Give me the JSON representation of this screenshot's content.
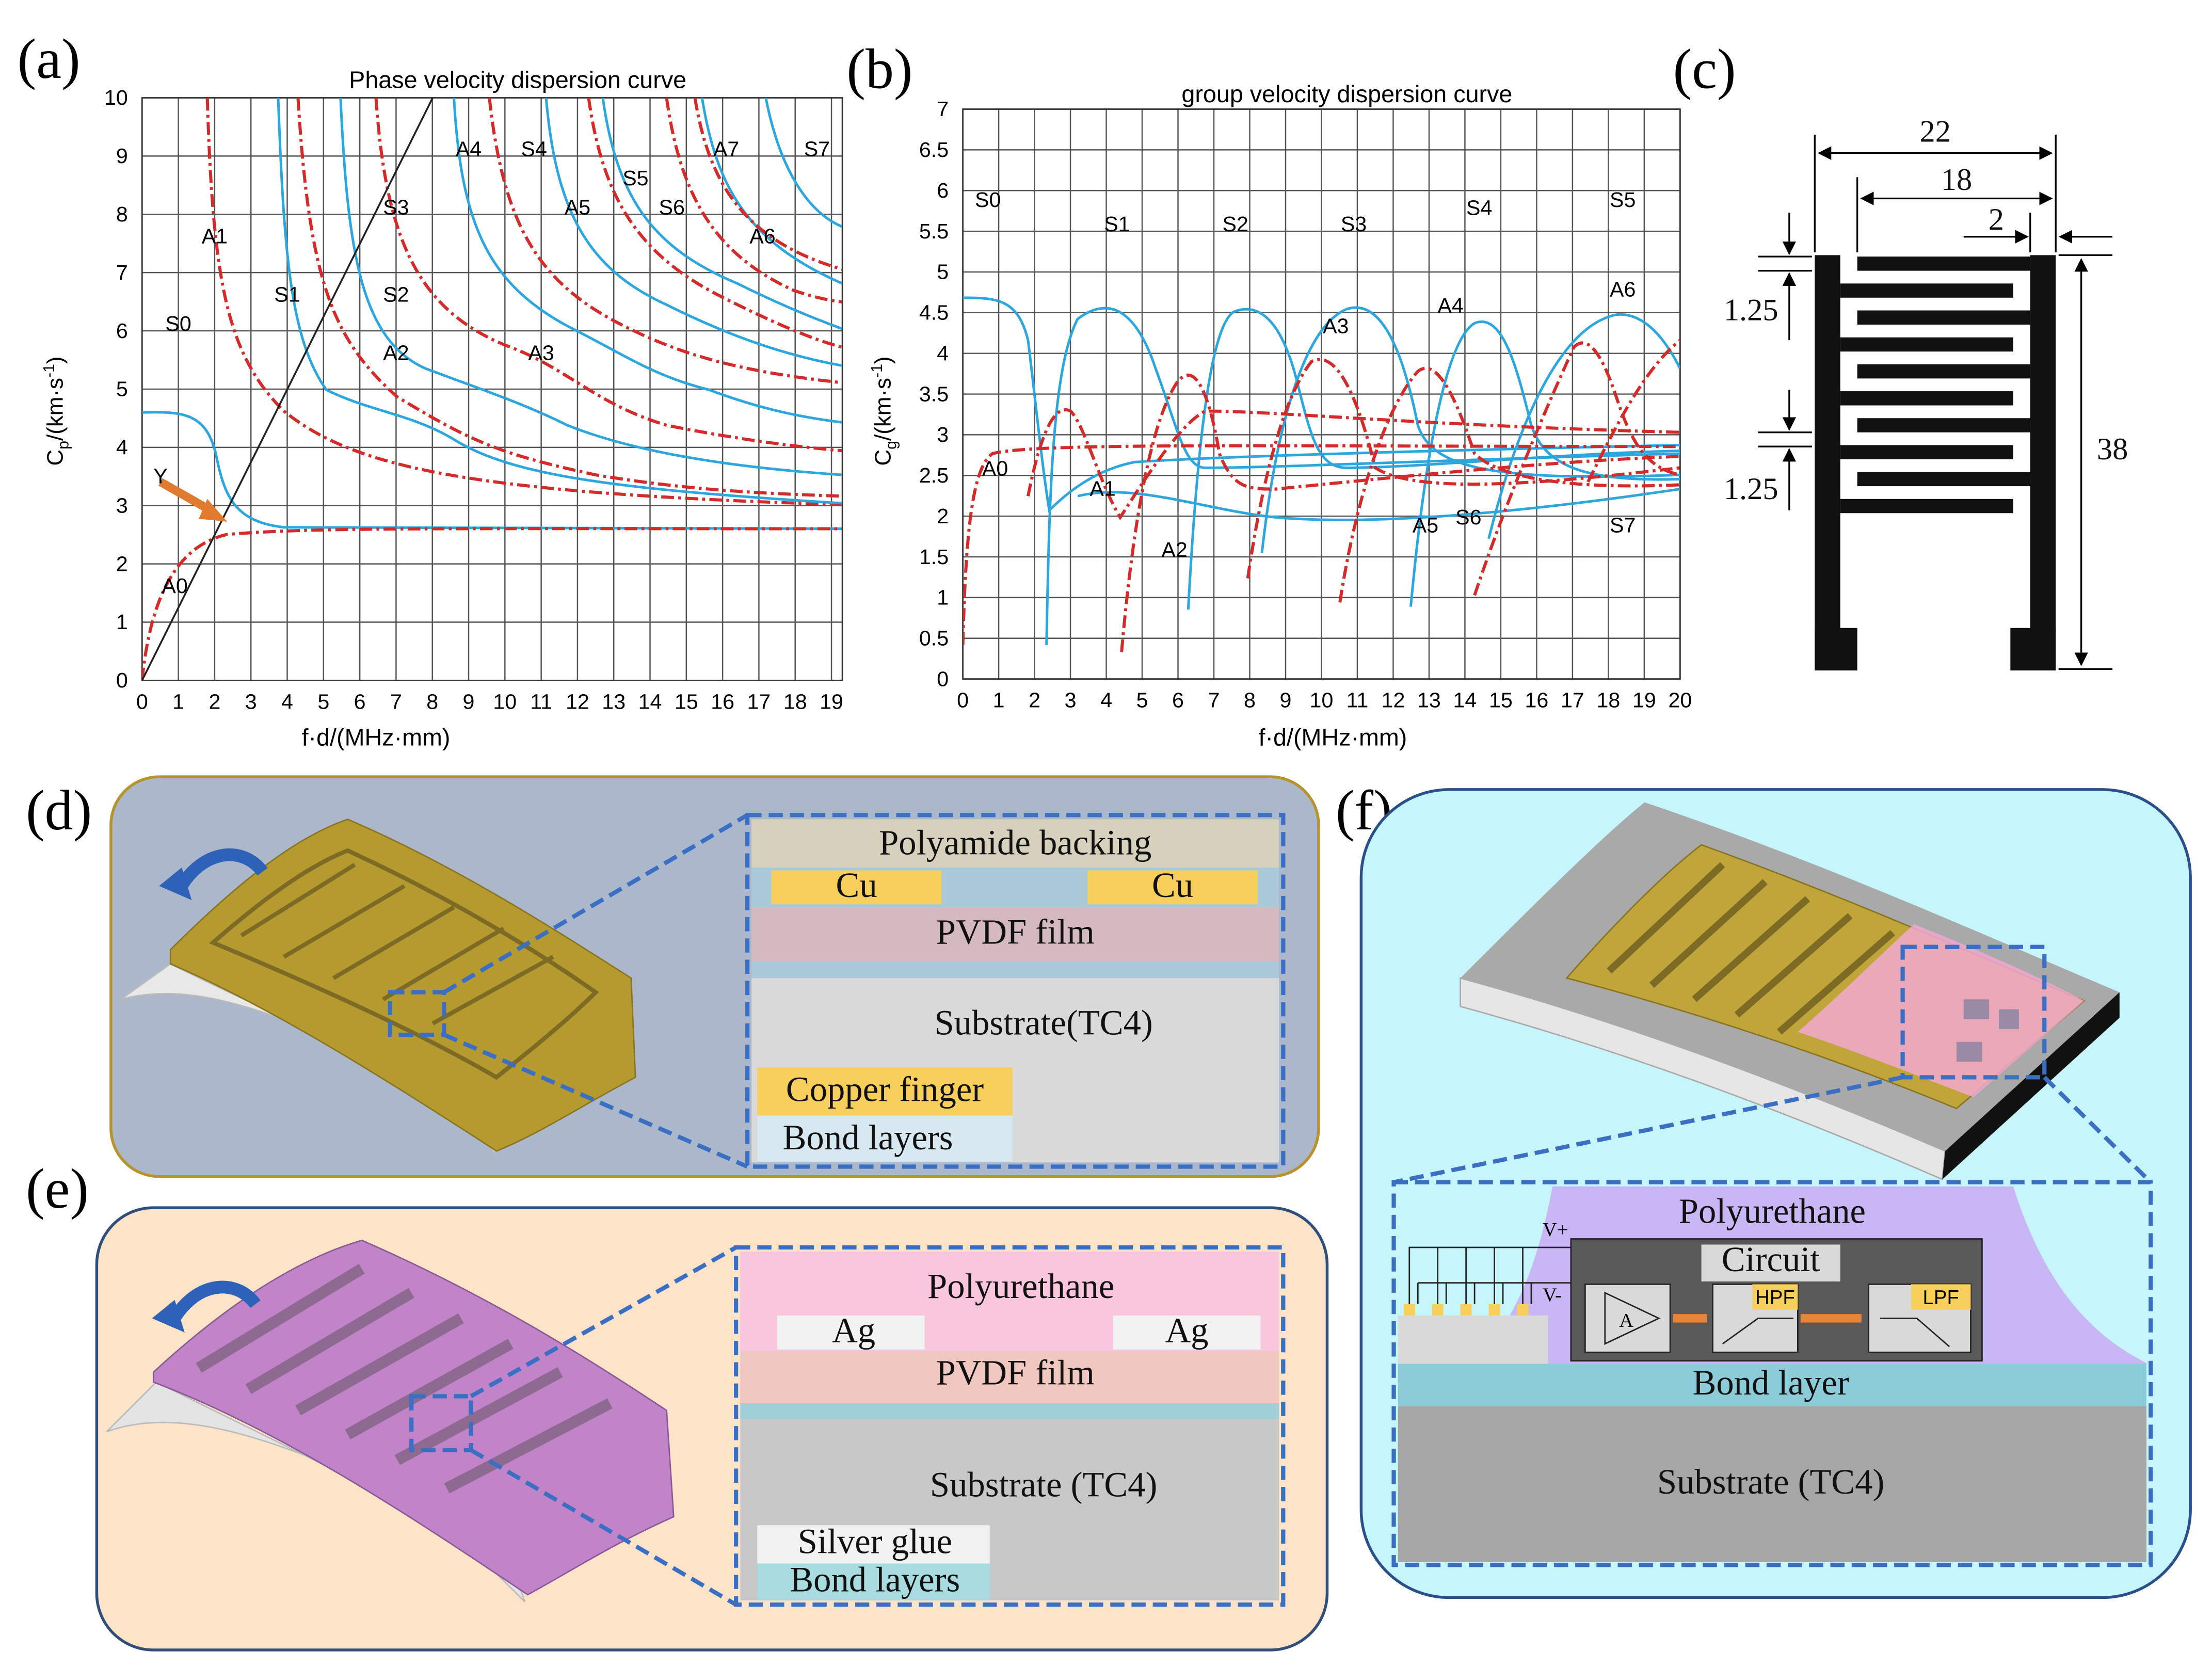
{
  "chart_a": {
    "type": "line",
    "label": "(a)",
    "title": "Phase velocity dispersion curve",
    "x_label": "f·d/(MHz·mm)",
    "y_label": {
      "symbol": "C",
      "subscript": "p",
      "unit": "/(km·s",
      "superscript": "-1",
      "close": ")"
    },
    "xlim": [
      0,
      19.3
    ],
    "xticks": [
      0,
      1,
      2,
      3,
      4,
      5,
      6,
      7,
      8,
      9,
      10,
      11,
      12,
      13,
      14,
      15,
      16,
      17,
      18,
      19
    ],
    "ylim": [
      0,
      10
    ],
    "yticks": [
      0,
      1,
      2,
      3,
      4,
      5,
      6,
      7,
      8,
      9,
      10
    ],
    "grid": true,
    "pointer_label": "Y",
    "annotations": [
      {
        "text": "S0",
        "x": 1.0,
        "y": 6.0
      },
      {
        "text": "A1",
        "x": 2.0,
        "y": 7.5
      },
      {
        "text": "S1",
        "x": 4.0,
        "y": 6.5
      },
      {
        "text": "S3",
        "x": 7.0,
        "y": 8.0
      },
      {
        "text": "S2",
        "x": 7.0,
        "y": 6.5
      },
      {
        "text": "A2",
        "x": 7.0,
        "y": 5.5
      },
      {
        "text": "A4",
        "x": 9.0,
        "y": 9.0
      },
      {
        "text": "S4",
        "x": 10.8,
        "y": 9.0
      },
      {
        "text": "A5",
        "x": 12.0,
        "y": 8.0
      },
      {
        "text": "S5",
        "x": 13.6,
        "y": 8.5
      },
      {
        "text": "S6",
        "x": 14.6,
        "y": 8.0
      },
      {
        "text": "A7",
        "x": 16.1,
        "y": 9.0
      },
      {
        "text": "S7",
        "x": 18.6,
        "y": 9.0
      },
      {
        "text": "A6",
        "x": 17.1,
        "y": 7.5
      },
      {
        "text": "A3",
        "x": 11.0,
        "y": 5.5
      },
      {
        "text": "A0",
        "x": 0.9,
        "y": 1.5
      }
    ]
  },
  "chart_b": {
    "type": "line",
    "label": "(b)",
    "title": "group velocity dispersion curve",
    "x_label": "f·d/(MHz·mm)",
    "y_label": {
      "symbol": "C",
      "subscript": "g",
      "unit": "/(km·s",
      "superscript": "-1",
      "close": ")"
    },
    "xlim": [
      0,
      20
    ],
    "xticks": [
      0,
      1,
      2,
      3,
      4,
      5,
      6,
      7,
      8,
      9,
      10,
      11,
      12,
      13,
      14,
      15,
      16,
      17,
      18,
      19,
      20
    ],
    "ylim": [
      0,
      7
    ],
    "yticks": [
      0,
      0.5,
      1,
      1.5,
      2,
      2.5,
      3,
      3.5,
      4,
      4.5,
      5,
      5.5,
      6,
      6.5,
      7
    ],
    "grid": true,
    "annotations": [
      {
        "text": "S0",
        "x": 0.7,
        "y": 5.8
      },
      {
        "text": "S1",
        "x": 4.3,
        "y": 5.5
      },
      {
        "text": "S2",
        "x": 7.6,
        "y": 5.5
      },
      {
        "text": "S3",
        "x": 10.9,
        "y": 5.5
      },
      {
        "text": "S4",
        "x": 14.4,
        "y": 5.7
      },
      {
        "text": "S5",
        "x": 18.4,
        "y": 5.8
      },
      {
        "text": "A6",
        "x": 18.4,
        "y": 4.7
      },
      {
        "text": "A4",
        "x": 13.6,
        "y": 4.5
      },
      {
        "text": "A3",
        "x": 10.4,
        "y": 4.25
      },
      {
        "text": "A0",
        "x": 0.9,
        "y": 2.5
      },
      {
        "text": "A1",
        "x": 3.9,
        "y": 2.25
      },
      {
        "text": "A2",
        "x": 5.9,
        "y": 1.5
      },
      {
        "text": "A5",
        "x": 12.9,
        "y": 1.8
      },
      {
        "text": "S6",
        "x": 14.1,
        "y": 1.9
      },
      {
        "text": "S7",
        "x": 18.4,
        "y": 1.8
      }
    ]
  },
  "fig_c": {
    "label": "(c)",
    "dimensions": {
      "width_outer": 22,
      "width_inner": 18,
      "gap": 2,
      "pitch_top": 1.25,
      "pitch_bottom": 1.25,
      "height": 38
    }
  },
  "fig_d": {
    "label": "(d)",
    "layers": {
      "backing": "Polyamide backing",
      "cu_left": "Cu",
      "cu_right": "Cu",
      "pvdf": "PVDF film",
      "substrate": "Substrate(TC4)",
      "finger": "Copper finger",
      "bond": "Bond layers"
    }
  },
  "fig_e": {
    "label": "(e)",
    "layers": {
      "polyurethane": "Polyurethane",
      "ag_left": "Ag",
      "ag_right": "Ag",
      "pvdf": "PVDF film",
      "substrate": "Substrate (TC4)",
      "glue": "Silver glue",
      "bond": "Bond layers"
    }
  },
  "fig_f": {
    "label": "(f)",
    "layers": {
      "polyurethane": "Polyurethane",
      "circuit": "Circuit",
      "amp": "A",
      "hpf": "HPF",
      "lpf": "LPF",
      "vplus": "V+",
      "vminus": "V-",
      "bond": "Bond layer",
      "substrate": "Substrate (TC4)"
    }
  }
}
